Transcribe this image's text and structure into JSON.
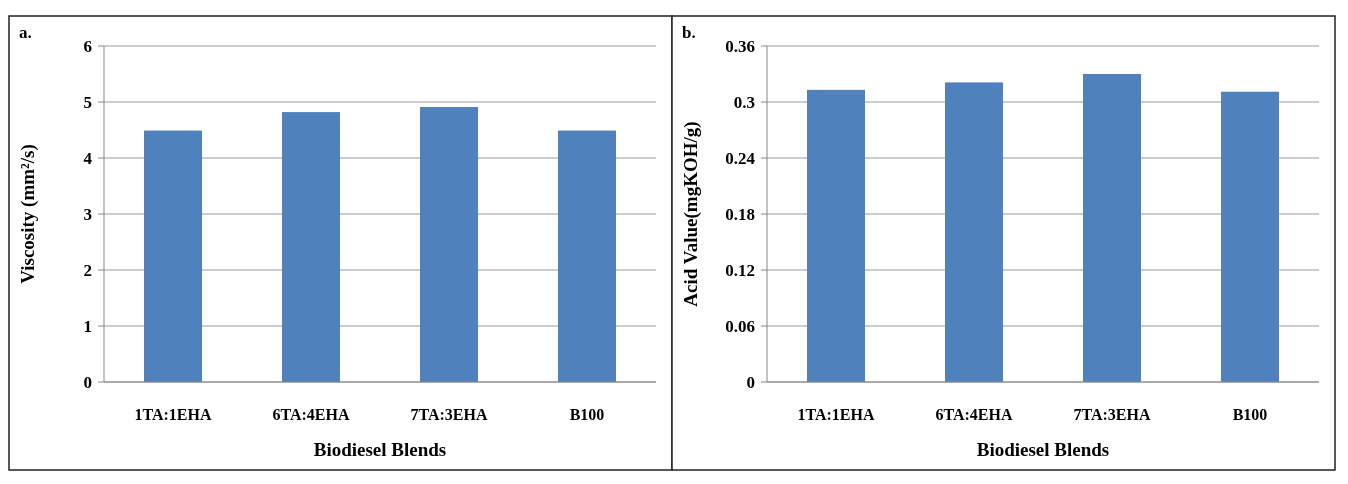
{
  "chart_data": [
    {
      "type": "bar",
      "annotations": [
        "a."
      ],
      "categories": [
        "1TA:1EHA",
        "6TA:4EHA",
        "7TA:3EHA",
        "B100"
      ],
      "values": [
        4.49,
        4.82,
        4.91,
        4.49
      ],
      "color": "#4f81bd",
      "xlabel": "Biodiesel Blends",
      "ylabel": "Viscosity (mm²/s)",
      "ylim": [
        0,
        6
      ],
      "yticks": [
        0,
        1,
        2,
        3,
        4,
        5,
        6
      ],
      "grid": "y"
    },
    {
      "type": "bar",
      "annotations": [
        "b."
      ],
      "categories": [
        "1TA:1EHA",
        "6TA:4EHA",
        "7TA:3EHA",
        "B100"
      ],
      "values": [
        0.313,
        0.321,
        0.33,
        0.311
      ],
      "color": "#4f81bd",
      "xlabel": "Biodiesel Blends",
      "ylabel": "Acid Value(mgKOH/g)",
      "ylim": [
        0,
        0.36
      ],
      "yticks": [
        0,
        0.06,
        0.12,
        0.18,
        0.24,
        0.3,
        0.36
      ],
      "grid": "y"
    }
  ]
}
